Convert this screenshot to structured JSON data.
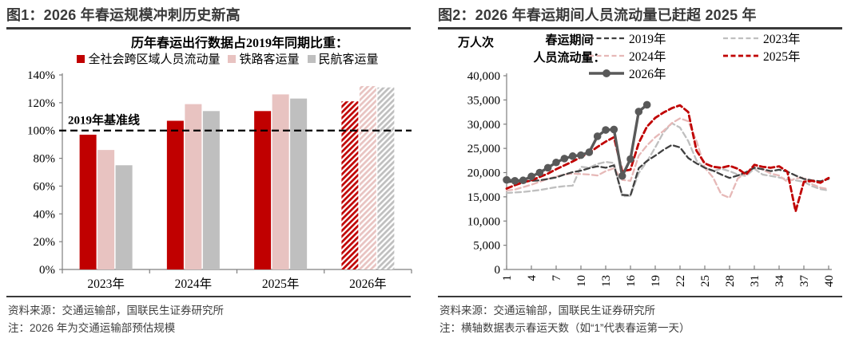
{
  "figure": {
    "left_panel": {
      "title": "图1：2026 年春运规模冲刺历史新高",
      "source": "资料来源：交通运输部，国联民生证券研究所",
      "note": "注：2026 年为交通运输部预估规模"
    },
    "right_panel": {
      "title": "图2：2026 年春运期间人员流动量已赶超 2025 年",
      "source": "资料来源：交通运输部，国联民生证券研究所",
      "note": "注：横轴数据表示春运天数（如“1”代表春运第一天）"
    }
  },
  "colors": {
    "dark_red": "#c00000",
    "pink": "#e8c3c1",
    "light_gray": "#bfbfbf",
    "dark_gray_2019": "#404040",
    "dark_gray_2026": "#595959",
    "heading_gray": "#3a3a3a"
  },
  "chart_data": [
    {
      "type": "bar",
      "title": "历年春运出行数据占2019年同期比重：",
      "categories": [
        "2023年",
        "2024年",
        "2025年",
        "2026年"
      ],
      "series": [
        {
          "name": "全社会跨区域人员流动量",
          "color": "#c00000",
          "values": [
            97,
            107,
            114,
            121
          ]
        },
        {
          "name": "铁路客运量",
          "color": "#e8c3c1",
          "values": [
            86,
            119,
            126,
            132
          ]
        },
        {
          "name": "民航客运量",
          "color": "#bfbfbf",
          "values": [
            75,
            114,
            123,
            131
          ]
        }
      ],
      "hatched_category_index": 3,
      "baseline": {
        "value": 100,
        "label": "2019年基准线"
      },
      "ylim": [
        0,
        140
      ],
      "ytick_step": 20,
      "ytick_suffix": "%",
      "grid": false,
      "legend_position": "top"
    },
    {
      "type": "line",
      "ylabel": "万人次",
      "legend_title_lines": [
        "春运期间",
        "人员流动量："
      ],
      "x_start": 1,
      "x_end": 40,
      "xticks": [
        1,
        4,
        7,
        10,
        13,
        16,
        19,
        22,
        25,
        28,
        31,
        34,
        37,
        40
      ],
      "ylim": [
        0,
        40000
      ],
      "ytick_step": 5000,
      "grid": false,
      "legend_position": "top",
      "series": [
        {
          "name": "2019年",
          "color": "#404040",
          "dash": true,
          "marker": false,
          "values": [
            18000,
            18200,
            18100,
            18300,
            18400,
            18700,
            19000,
            19600,
            20100,
            20400,
            20900,
            21300,
            21000,
            21500,
            15400,
            15300,
            20900,
            22400,
            23500,
            24700,
            25700,
            25200,
            23000,
            21900,
            21000,
            20400,
            19600,
            18900,
            19400,
            20100,
            21000,
            20700,
            20300,
            20600,
            20200,
            19400,
            18700,
            18400,
            18200,
            18700
          ]
        },
        {
          "name": "2023年",
          "color": "#bfbfbf",
          "dash": true,
          "marker": false,
          "values": [
            15800,
            15900,
            16000,
            16200,
            16400,
            16700,
            17000,
            17200,
            17300,
            21200,
            21000,
            21800,
            22200,
            22000,
            15100,
            15200,
            19900,
            22300,
            25200,
            28300,
            30200,
            29300,
            26500,
            22500,
            21000,
            20300,
            20800,
            20300,
            19600,
            19300,
            20800,
            19600,
            19300,
            19000,
            18600,
            18400,
            18100,
            17200,
            16600,
            16300
          ]
        },
        {
          "name": "2024年",
          "color": "#e6b8b7",
          "dash": true,
          "marker": false,
          "values": [
            16300,
            16500,
            17000,
            17500,
            18100,
            18700,
            19200,
            19600,
            19800,
            19700,
            19600,
            19400,
            20300,
            20900,
            18500,
            18300,
            23500,
            25600,
            27300,
            28600,
            30200,
            31200,
            30600,
            26500,
            21000,
            19000,
            15500,
            14800,
            18800,
            19900,
            21300,
            20600,
            19800,
            19400,
            18100,
            18800,
            19000,
            17600,
            16900,
            16600
          ]
        },
        {
          "name": "2025年",
          "color": "#c00000",
          "dash": true,
          "marker": false,
          "values": [
            16700,
            17400,
            18000,
            18400,
            19100,
            19800,
            20700,
            21500,
            22300,
            23200,
            24100,
            25300,
            26400,
            27300,
            20300,
            20600,
            26100,
            29500,
            31300,
            32400,
            33300,
            33900,
            32500,
            24500,
            21900,
            21200,
            21000,
            21400,
            20800,
            19600,
            21600,
            21200,
            21000,
            21300,
            20200,
            12000,
            18100,
            18300,
            17900,
            18900
          ]
        },
        {
          "name": "2026年",
          "color": "#595959",
          "dash": false,
          "marker": true,
          "values": [
            18500,
            18300,
            18400,
            19200,
            20000,
            21000,
            22100,
            22900,
            23400,
            23600,
            24200,
            27500,
            28800,
            28900,
            19300,
            22800,
            32600,
            34000
          ]
        }
      ]
    }
  ]
}
